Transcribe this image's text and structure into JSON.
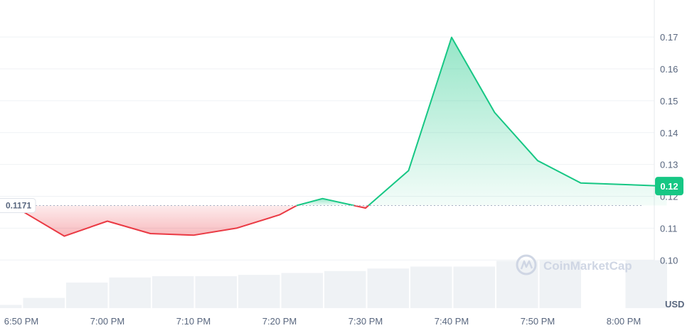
{
  "chart_data": {
    "type": "area",
    "x_ticks": [
      "6:50 PM",
      "7:00 PM",
      "7:10 PM",
      "7:20 PM",
      "7:30 PM",
      "7:40 PM",
      "7:50 PM",
      "8:00 PM"
    ],
    "y_ticks": [
      0.1,
      0.11,
      0.12,
      0.13,
      0.14,
      0.15,
      0.16,
      0.17
    ],
    "ylim": [
      0.0965,
      0.1805
    ],
    "unit": "USD",
    "reference": {
      "value": 0.1171,
      "label": "0.1171"
    },
    "current": {
      "value": 0.1232,
      "label": "0.12"
    },
    "price": [
      {
        "t": "6:50 PM",
        "v": 0.1155
      },
      {
        "t": "6:55 PM",
        "v": 0.1075
      },
      {
        "t": "7:00 PM",
        "v": 0.1122
      },
      {
        "t": "7:05 PM",
        "v": 0.1083
      },
      {
        "t": "7:10 PM",
        "v": 0.1078
      },
      {
        "t": "7:15 PM",
        "v": 0.11
      },
      {
        "t": "7:20 PM",
        "v": 0.1142
      },
      {
        "t": "7:22 PM",
        "v": 0.1171
      },
      {
        "t": "7:25 PM",
        "v": 0.1193
      },
      {
        "t": "7:30 PM",
        "v": 0.1163
      },
      {
        "t": "7:35 PM",
        "v": 0.1281
      },
      {
        "t": "7:40 PM",
        "v": 0.1699
      },
      {
        "t": "7:45 PM",
        "v": 0.1463
      },
      {
        "t": "7:50 PM",
        "v": 0.1312
      },
      {
        "t": "7:55 PM",
        "v": 0.1242
      },
      {
        "t": "8:05 PM",
        "v": 0.1232
      }
    ],
    "volume": [
      0.05,
      0.16,
      0.4,
      0.48,
      0.5,
      0.5,
      0.52,
      0.55,
      0.58,
      0.62,
      0.65,
      0.65,
      0.74,
      0.76,
      0.0,
      0.75
    ],
    "colors": {
      "up": "#16c784",
      "down": "#ea3943",
      "volume": "#eff2f5",
      "grid": "#eff2f5",
      "reference": "#a6b0c3"
    }
  },
  "watermark": {
    "text": "CoinMarketCap"
  }
}
